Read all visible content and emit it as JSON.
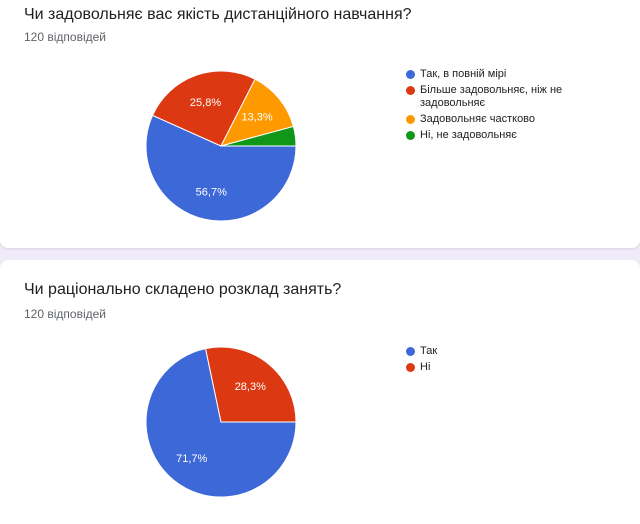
{
  "colors": {
    "blue": "#3c68d8",
    "red": "#dc3912",
    "orange": "#ff9900",
    "green": "#109618"
  },
  "questions": [
    {
      "title": "Чи задовольняє вас якість дистанційного навчання?",
      "responses": "120 відповідей"
    },
    {
      "title": "Чи раціонально складено розклад занять?",
      "responses": "120 відповідей"
    }
  ],
  "chart_data": [
    {
      "type": "pie",
      "categories": [
        "Так, в повній мірі",
        "Більше задовольняє, ніж не задовольняє",
        "Задовольняє частково",
        "Ні, не задовольняє"
      ],
      "values": [
        56.7,
        25.8,
        13.3,
        4.2
      ],
      "labels": [
        "56,7%",
        "25,8%",
        "13,3%",
        ""
      ],
      "colors": [
        "#3c68d8",
        "#dc3912",
        "#ff9900",
        "#109618"
      ],
      "legend": "right"
    },
    {
      "type": "pie",
      "categories": [
        "Так",
        "Ні"
      ],
      "values": [
        71.7,
        28.3
      ],
      "labels": [
        "71,7%",
        "28,3%"
      ],
      "colors": [
        "#3c68d8",
        "#dc3912"
      ],
      "legend": "right"
    }
  ]
}
